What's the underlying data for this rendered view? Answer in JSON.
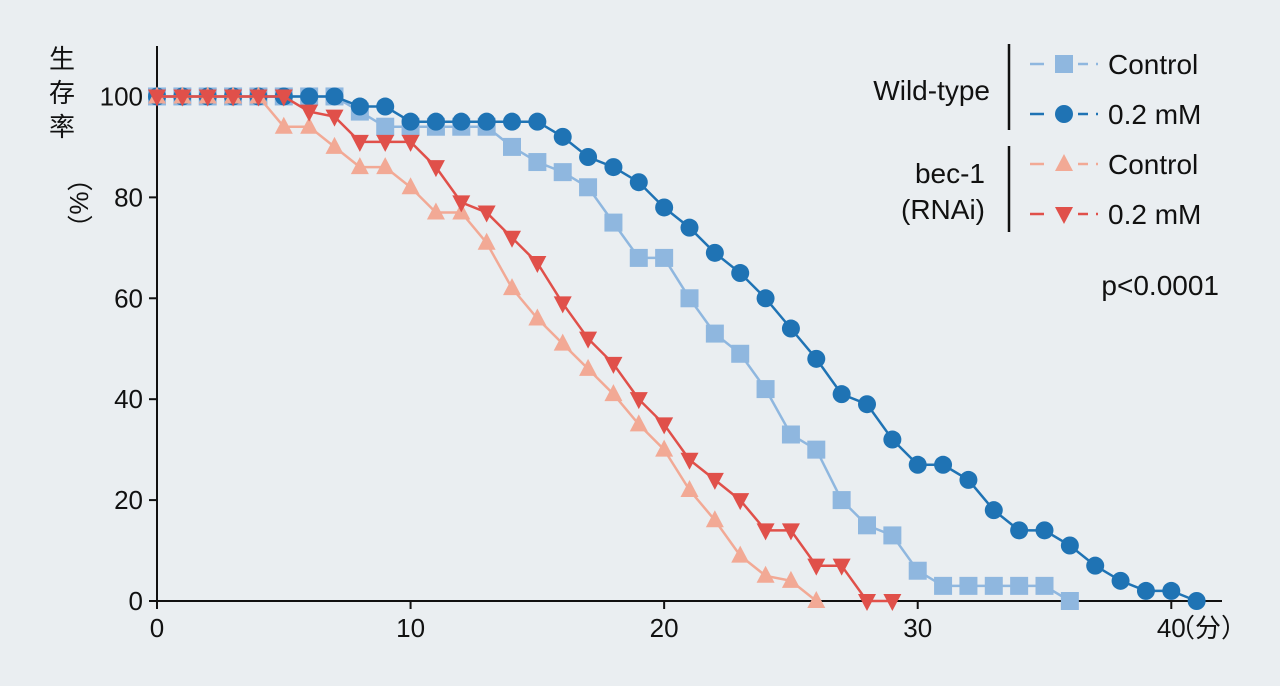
{
  "chart_data": {
    "type": "line",
    "title": "",
    "ylabel_chars": [
      "生",
      "存",
      "率",
      "（%）"
    ],
    "xlabel": "（分）",
    "xlim": [
      0,
      42
    ],
    "ylim": [
      0,
      110
    ],
    "x_ticks": [
      0,
      10,
      20,
      30,
      40
    ],
    "y_ticks": [
      0,
      20,
      40,
      60,
      80,
      100
    ],
    "grid": false,
    "legend_placement": "top-right",
    "legend_groups": [
      {
        "label_lines": [
          "Wild-type"
        ],
        "series_names": [
          "Control",
          "0.2 mM"
        ]
      },
      {
        "label_lines": [
          "bec-1",
          "(RNAi)"
        ],
        "series_names": [
          "Control",
          "0.2 mM"
        ]
      }
    ],
    "annotation": "p<0.0001",
    "series": [
      {
        "name": "Control",
        "group": "Wild-type",
        "marker": "square",
        "color": "#8fb7df",
        "x": [
          0,
          1,
          2,
          3,
          4,
          5,
          6,
          7,
          8,
          9,
          10,
          11,
          12,
          13,
          14,
          15,
          16,
          17,
          18,
          19,
          20,
          21,
          22,
          23,
          24,
          25,
          26,
          27,
          28,
          29,
          30,
          31,
          32,
          33,
          34,
          35,
          36
        ],
        "y": [
          100,
          100,
          100,
          100,
          100,
          100,
          100,
          100,
          97,
          94,
          94,
          94,
          94,
          94,
          90,
          87,
          85,
          82,
          75,
          68,
          68,
          60,
          53,
          49,
          42,
          33,
          30,
          20,
          15,
          13,
          6,
          3,
          3,
          3,
          3,
          3,
          0
        ]
      },
      {
        "name": "0.2 mM",
        "group": "Wild-type",
        "marker": "circle",
        "color": "#1f73b4",
        "x": [
          0,
          1,
          2,
          3,
          4,
          5,
          6,
          7,
          8,
          9,
          10,
          11,
          12,
          13,
          14,
          15,
          16,
          17,
          18,
          19,
          20,
          21,
          22,
          23,
          24,
          25,
          26,
          27,
          28,
          29,
          30,
          31,
          32,
          33,
          34,
          35,
          36,
          37,
          38,
          39,
          40,
          41
        ],
        "y": [
          100,
          100,
          100,
          100,
          100,
          100,
          100,
          100,
          98,
          98,
          95,
          95,
          95,
          95,
          95,
          95,
          92,
          88,
          86,
          83,
          78,
          74,
          69,
          65,
          60,
          54,
          48,
          41,
          39,
          32,
          27,
          27,
          24,
          18,
          14,
          14,
          11,
          7,
          4,
          2,
          2,
          0
        ]
      },
      {
        "name": "Control",
        "group": "bec-1 (RNAi)",
        "marker": "triangle-up",
        "color": "#f2a995",
        "x": [
          0,
          1,
          2,
          3,
          4,
          5,
          6,
          7,
          8,
          9,
          10,
          11,
          12,
          13,
          14,
          15,
          16,
          17,
          18,
          19,
          20,
          21,
          22,
          23,
          24,
          25,
          26
        ],
        "y": [
          100,
          100,
          100,
          100,
          100,
          94,
          94,
          90,
          86,
          86,
          82,
          77,
          77,
          71,
          62,
          56,
          51,
          46,
          41,
          35,
          30,
          22,
          16,
          9,
          5,
          4,
          0
        ]
      },
      {
        "name": "0.2 mM",
        "group": "bec-1 (RNAi)",
        "marker": "triangle-down",
        "color": "#e0504a",
        "x": [
          0,
          1,
          2,
          3,
          4,
          5,
          6,
          7,
          8,
          9,
          10,
          11,
          12,
          13,
          14,
          15,
          16,
          17,
          18,
          19,
          20,
          21,
          22,
          23,
          24,
          25,
          26,
          27,
          28,
          29
        ],
        "y": [
          100,
          100,
          100,
          100,
          100,
          100,
          97,
          96,
          91,
          91,
          91,
          86,
          79,
          77,
          72,
          67,
          59,
          52,
          47,
          40,
          35,
          28,
          24,
          20,
          14,
          14,
          7,
          7,
          0,
          0
        ]
      }
    ]
  }
}
